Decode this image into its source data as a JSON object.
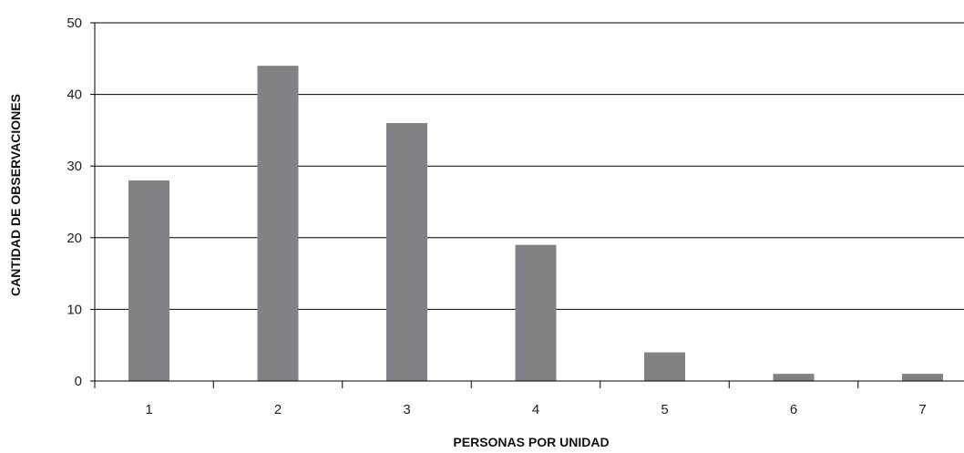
{
  "chart_data": {
    "type": "bar",
    "title": "",
    "xlabel": "PERSONAS POR UNIDAD",
    "ylabel": "CANTIDAD DE OBSERVACIONES",
    "categories": [
      "1",
      "2",
      "3",
      "4",
      "5",
      "6",
      "7"
    ],
    "values": [
      28,
      44,
      36,
      19,
      4,
      1,
      1
    ],
    "ylim": [
      0,
      50
    ],
    "yticks": [
      "0",
      "10",
      "20",
      "30",
      "40",
      "50"
    ],
    "grid": true,
    "legend": "none",
    "colors": {
      "bar": "#808285",
      "axis": "#000000",
      "grid": "#000000"
    }
  }
}
